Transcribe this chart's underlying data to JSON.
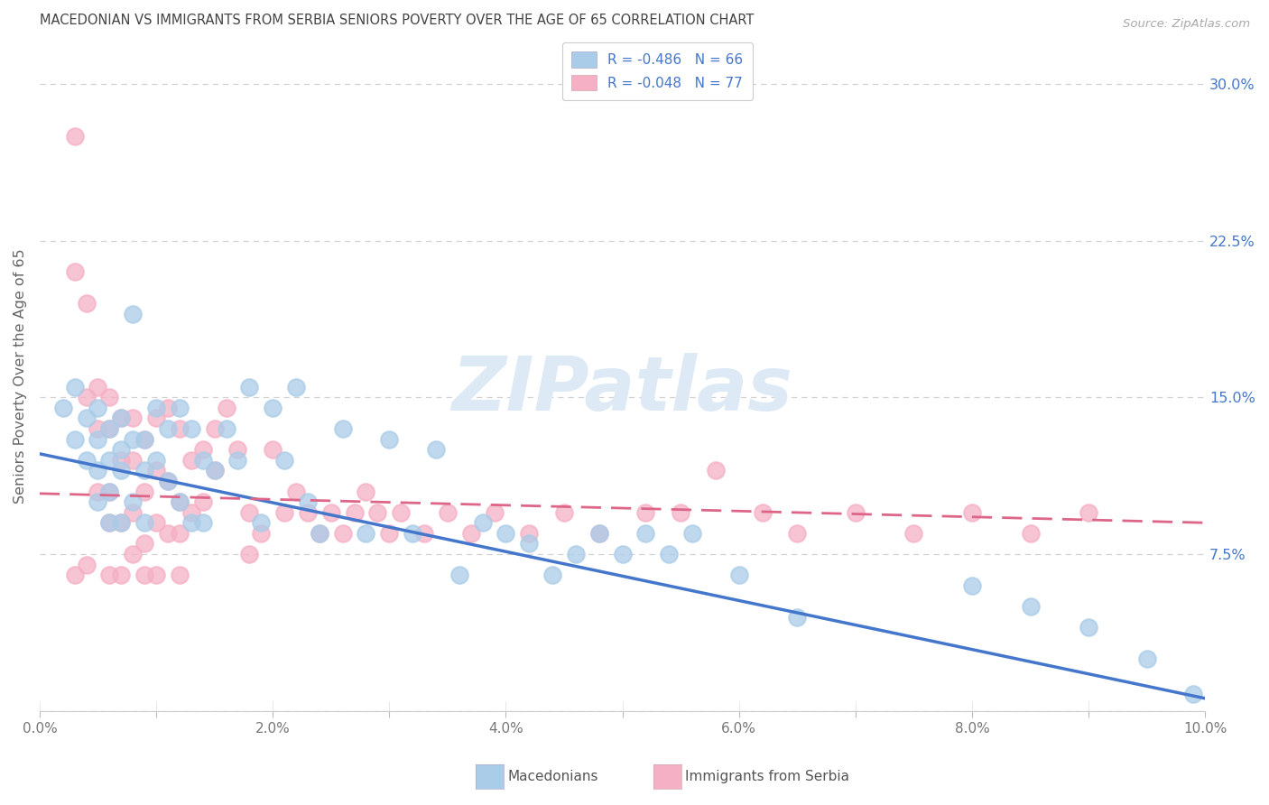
{
  "title": "MACEDONIAN VS IMMIGRANTS FROM SERBIA SENIORS POVERTY OVER THE AGE OF 65 CORRELATION CHART",
  "source": "Source: ZipAtlas.com",
  "ylabel": "Seniors Poverty Over the Age of 65",
  "xlim": [
    0.0,
    0.1
  ],
  "ylim": [
    0.0,
    0.32
  ],
  "yticks": [
    0.075,
    0.15,
    0.225,
    0.3
  ],
  "ytick_labels": [
    "7.5%",
    "15.0%",
    "22.5%",
    "30.0%"
  ],
  "xticks": [
    0.0,
    0.01,
    0.02,
    0.03,
    0.04,
    0.05,
    0.06,
    0.07,
    0.08,
    0.09,
    0.1
  ],
  "xtick_labels": [
    "0.0%",
    "",
    "2.0%",
    "",
    "4.0%",
    "",
    "6.0%",
    "",
    "8.0%",
    "",
    "10.0%"
  ],
  "R_mac": -0.486,
  "N_mac": 66,
  "R_serb": -0.048,
  "N_serb": 77,
  "blue_scatter_color": "#aacce8",
  "pink_scatter_color": "#f5b0c5",
  "blue_line_color": "#4477cc",
  "pink_line_color": "#dd6688",
  "watermark": "ZIPatlas",
  "background_color": "#ffffff",
  "grid_color": "#cccccc",
  "title_color": "#444444",
  "right_tick_color": "#4477cc",
  "mac_x": [
    0.002,
    0.003,
    0.003,
    0.004,
    0.004,
    0.005,
    0.005,
    0.005,
    0.005,
    0.006,
    0.006,
    0.006,
    0.006,
    0.007,
    0.007,
    0.007,
    0.007,
    0.008,
    0.008,
    0.008,
    0.009,
    0.009,
    0.009,
    0.01,
    0.01,
    0.011,
    0.011,
    0.012,
    0.012,
    0.013,
    0.013,
    0.014,
    0.014,
    0.015,
    0.016,
    0.017,
    0.018,
    0.019,
    0.02,
    0.021,
    0.022,
    0.023,
    0.024,
    0.026,
    0.028,
    0.03,
    0.032,
    0.034,
    0.036,
    0.038,
    0.04,
    0.042,
    0.044,
    0.046,
    0.048,
    0.05,
    0.052,
    0.054,
    0.056,
    0.06,
    0.065,
    0.08,
    0.085,
    0.09,
    0.095,
    0.099
  ],
  "mac_y": [
    0.145,
    0.155,
    0.13,
    0.14,
    0.12,
    0.145,
    0.13,
    0.115,
    0.1,
    0.135,
    0.12,
    0.105,
    0.09,
    0.14,
    0.125,
    0.115,
    0.09,
    0.19,
    0.13,
    0.1,
    0.13,
    0.115,
    0.09,
    0.145,
    0.12,
    0.135,
    0.11,
    0.145,
    0.1,
    0.135,
    0.09,
    0.12,
    0.09,
    0.115,
    0.135,
    0.12,
    0.155,
    0.09,
    0.145,
    0.12,
    0.155,
    0.1,
    0.085,
    0.135,
    0.085,
    0.13,
    0.085,
    0.125,
    0.065,
    0.09,
    0.085,
    0.08,
    0.065,
    0.075,
    0.085,
    0.075,
    0.085,
    0.075,
    0.085,
    0.065,
    0.045,
    0.06,
    0.05,
    0.04,
    0.025,
    0.008
  ],
  "serb_x": [
    0.003,
    0.003,
    0.004,
    0.004,
    0.005,
    0.005,
    0.005,
    0.006,
    0.006,
    0.006,
    0.006,
    0.007,
    0.007,
    0.007,
    0.008,
    0.008,
    0.008,
    0.008,
    0.009,
    0.009,
    0.009,
    0.01,
    0.01,
    0.01,
    0.011,
    0.011,
    0.011,
    0.012,
    0.012,
    0.012,
    0.013,
    0.013,
    0.014,
    0.014,
    0.015,
    0.015,
    0.016,
    0.017,
    0.018,
    0.018,
    0.019,
    0.02,
    0.021,
    0.022,
    0.023,
    0.024,
    0.025,
    0.026,
    0.027,
    0.028,
    0.029,
    0.03,
    0.031,
    0.033,
    0.035,
    0.037,
    0.039,
    0.042,
    0.045,
    0.048,
    0.052,
    0.055,
    0.058,
    0.062,
    0.065,
    0.07,
    0.075,
    0.08,
    0.085,
    0.09,
    0.003,
    0.004,
    0.006,
    0.007,
    0.009,
    0.01,
    0.012
  ],
  "serb_y": [
    0.275,
    0.21,
    0.195,
    0.15,
    0.155,
    0.135,
    0.105,
    0.15,
    0.135,
    0.105,
    0.09,
    0.14,
    0.12,
    0.09,
    0.14,
    0.12,
    0.095,
    0.075,
    0.13,
    0.105,
    0.08,
    0.14,
    0.115,
    0.09,
    0.145,
    0.11,
    0.085,
    0.135,
    0.1,
    0.085,
    0.12,
    0.095,
    0.125,
    0.1,
    0.135,
    0.115,
    0.145,
    0.125,
    0.095,
    0.075,
    0.085,
    0.125,
    0.095,
    0.105,
    0.095,
    0.085,
    0.095,
    0.085,
    0.095,
    0.105,
    0.095,
    0.085,
    0.095,
    0.085,
    0.095,
    0.085,
    0.095,
    0.085,
    0.095,
    0.085,
    0.095,
    0.095,
    0.115,
    0.095,
    0.085,
    0.095,
    0.085,
    0.095,
    0.085,
    0.095,
    0.065,
    0.07,
    0.065,
    0.065,
    0.065,
    0.065,
    0.065
  ],
  "mac_trend_x": [
    0.0,
    0.1
  ],
  "mac_trend_y": [
    0.123,
    0.006
  ],
  "serb_trend_x": [
    0.0,
    0.1
  ],
  "serb_trend_y": [
    0.104,
    0.09
  ]
}
